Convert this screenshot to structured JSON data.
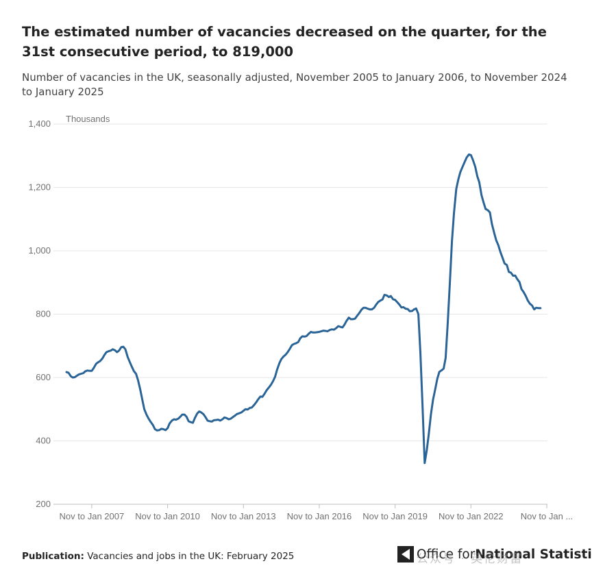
{
  "header": {
    "title": "The estimated number of vacancies decreased on the quarter, for the 31st consecutive period, to 819,000",
    "subtitle": "Number of vacancies in the UK, seasonally adjusted, November 2005 to January 2006, to November 2024 to January 2025"
  },
  "footer": {
    "publication_label": "Publication:",
    "publication_text": "Vacancies and jobs in the UK: February 2025"
  },
  "logo": {
    "text_part1": "Office for ",
    "text_part2": "National Statistics",
    "icon": "ons-logo-icon"
  },
  "watermark": "公众号 · 英伦财富",
  "colors": {
    "line": "#2a6496",
    "grid": "#e6e6e6",
    "axis_text": "#707070"
  },
  "chart_data": {
    "type": "line",
    "ylabel": "Thousands",
    "ylim": [
      200,
      1400
    ],
    "yticks": [
      200,
      400,
      600,
      800,
      1000,
      1200,
      1400
    ],
    "grid": true,
    "xlim": [
      2006.0,
      2025.0
    ],
    "xticks": [
      {
        "x": 2007,
        "label": "Nov to Jan 2007"
      },
      {
        "x": 2010,
        "label": "Nov to Jan 2010"
      },
      {
        "x": 2013,
        "label": "Nov to Jan 2013"
      },
      {
        "x": 2016,
        "label": "Nov to Jan 2016"
      },
      {
        "x": 2019,
        "label": "Nov to Jan 2019"
      },
      {
        "x": 2022,
        "label": "Nov to Jan 2022"
      },
      {
        "x": 2025,
        "label": "Nov to Jan ..."
      }
    ],
    "series": [
      {
        "points": [
          [
            2006.0,
            617
          ],
          [
            2006.08,
            615
          ],
          [
            2006.17,
            604
          ],
          [
            2006.25,
            600
          ],
          [
            2006.33,
            601
          ],
          [
            2006.42,
            606
          ],
          [
            2006.5,
            610
          ],
          [
            2006.58,
            612
          ],
          [
            2006.67,
            614
          ],
          [
            2006.75,
            620
          ],
          [
            2006.83,
            622
          ],
          [
            2006.92,
            621
          ],
          [
            2007.0,
            621
          ],
          [
            2007.08,
            630
          ],
          [
            2007.17,
            643
          ],
          [
            2007.25,
            648
          ],
          [
            2007.33,
            652
          ],
          [
            2007.42,
            660
          ],
          [
            2007.5,
            671
          ],
          [
            2007.58,
            680
          ],
          [
            2007.67,
            683
          ],
          [
            2007.75,
            685
          ],
          [
            2007.83,
            689
          ],
          [
            2007.92,
            686
          ],
          [
            2008.0,
            680
          ],
          [
            2008.08,
            685
          ],
          [
            2008.17,
            696
          ],
          [
            2008.25,
            697
          ],
          [
            2008.33,
            689
          ],
          [
            2008.42,
            665
          ],
          [
            2008.5,
            650
          ],
          [
            2008.58,
            635
          ],
          [
            2008.67,
            620
          ],
          [
            2008.75,
            612
          ],
          [
            2008.83,
            592
          ],
          [
            2008.92,
            562
          ],
          [
            2009.0,
            530
          ],
          [
            2009.08,
            500
          ],
          [
            2009.17,
            482
          ],
          [
            2009.25,
            470
          ],
          [
            2009.33,
            460
          ],
          [
            2009.42,
            450
          ],
          [
            2009.5,
            437
          ],
          [
            2009.58,
            433
          ],
          [
            2009.67,
            434
          ],
          [
            2009.75,
            438
          ],
          [
            2009.83,
            437
          ],
          [
            2009.92,
            434
          ],
          [
            2010.0,
            440
          ],
          [
            2010.08,
            455
          ],
          [
            2010.17,
            464
          ],
          [
            2010.25,
            468
          ],
          [
            2010.33,
            467
          ],
          [
            2010.42,
            470
          ],
          [
            2010.5,
            476
          ],
          [
            2010.58,
            483
          ],
          [
            2010.67,
            483
          ],
          [
            2010.75,
            476
          ],
          [
            2010.83,
            462
          ],
          [
            2010.92,
            459
          ],
          [
            2011.0,
            457
          ],
          [
            2011.08,
            472
          ],
          [
            2011.17,
            486
          ],
          [
            2011.25,
            493
          ],
          [
            2011.33,
            490
          ],
          [
            2011.42,
            484
          ],
          [
            2011.5,
            475
          ],
          [
            2011.58,
            464
          ],
          [
            2011.67,
            462
          ],
          [
            2011.75,
            461
          ],
          [
            2011.83,
            465
          ],
          [
            2011.92,
            466
          ],
          [
            2012.0,
            467
          ],
          [
            2012.08,
            464
          ],
          [
            2012.17,
            468
          ],
          [
            2012.25,
            474
          ],
          [
            2012.33,
            472
          ],
          [
            2012.42,
            468
          ],
          [
            2012.5,
            470
          ],
          [
            2012.58,
            475
          ],
          [
            2012.67,
            480
          ],
          [
            2012.75,
            485
          ],
          [
            2012.83,
            487
          ],
          [
            2012.92,
            490
          ],
          [
            2013.0,
            495
          ],
          [
            2013.08,
            500
          ],
          [
            2013.17,
            499
          ],
          [
            2013.25,
            504
          ],
          [
            2013.33,
            505
          ],
          [
            2013.42,
            513
          ],
          [
            2013.5,
            521
          ],
          [
            2013.58,
            531
          ],
          [
            2013.67,
            540
          ],
          [
            2013.75,
            539
          ],
          [
            2013.83,
            548
          ],
          [
            2013.92,
            560
          ],
          [
            2014.0,
            568
          ],
          [
            2014.08,
            576
          ],
          [
            2014.17,
            588
          ],
          [
            2014.25,
            602
          ],
          [
            2014.33,
            624
          ],
          [
            2014.42,
            645
          ],
          [
            2014.5,
            658
          ],
          [
            2014.58,
            666
          ],
          [
            2014.67,
            672
          ],
          [
            2014.75,
            680
          ],
          [
            2014.83,
            690
          ],
          [
            2014.92,
            702
          ],
          [
            2015.0,
            706
          ],
          [
            2015.08,
            708
          ],
          [
            2015.17,
            712
          ],
          [
            2015.25,
            724
          ],
          [
            2015.33,
            730
          ],
          [
            2015.42,
            729
          ],
          [
            2015.5,
            731
          ],
          [
            2015.58,
            738
          ],
          [
            2015.67,
            744
          ],
          [
            2015.75,
            742
          ],
          [
            2015.83,
            742
          ],
          [
            2015.92,
            743
          ],
          [
            2016.0,
            744
          ],
          [
            2016.08,
            746
          ],
          [
            2016.17,
            748
          ],
          [
            2016.25,
            747
          ],
          [
            2016.33,
            746
          ],
          [
            2016.42,
            750
          ],
          [
            2016.5,
            752
          ],
          [
            2016.58,
            751
          ],
          [
            2016.67,
            756
          ],
          [
            2016.75,
            762
          ],
          [
            2016.83,
            760
          ],
          [
            2016.92,
            758
          ],
          [
            2017.0,
            767
          ],
          [
            2017.08,
            779
          ],
          [
            2017.17,
            789
          ],
          [
            2017.25,
            784
          ],
          [
            2017.33,
            784
          ],
          [
            2017.42,
            786
          ],
          [
            2017.5,
            795
          ],
          [
            2017.58,
            803
          ],
          [
            2017.67,
            814
          ],
          [
            2017.75,
            820
          ],
          [
            2017.83,
            820
          ],
          [
            2017.92,
            817
          ],
          [
            2018.0,
            815
          ],
          [
            2018.08,
            815
          ],
          [
            2018.17,
            820
          ],
          [
            2018.25,
            830
          ],
          [
            2018.33,
            838
          ],
          [
            2018.42,
            843
          ],
          [
            2018.5,
            846
          ],
          [
            2018.58,
            861
          ],
          [
            2018.67,
            859
          ],
          [
            2018.75,
            854
          ],
          [
            2018.83,
            857
          ],
          [
            2018.92,
            847
          ],
          [
            2019.0,
            845
          ],
          [
            2019.08,
            838
          ],
          [
            2019.17,
            830
          ],
          [
            2019.25,
            821
          ],
          [
            2019.33,
            822
          ],
          [
            2019.42,
            817
          ],
          [
            2019.5,
            816
          ],
          [
            2019.58,
            809
          ],
          [
            2019.67,
            810
          ],
          [
            2019.75,
            815
          ],
          [
            2019.83,
            818
          ],
          [
            2019.92,
            800
          ],
          [
            2020.0,
            680
          ],
          [
            2020.08,
            520
          ],
          [
            2020.17,
            330
          ],
          [
            2020.25,
            370
          ],
          [
            2020.33,
            420
          ],
          [
            2020.42,
            485
          ],
          [
            2020.5,
            530
          ],
          [
            2020.58,
            560
          ],
          [
            2020.67,
            596
          ],
          [
            2020.75,
            618
          ],
          [
            2020.83,
            622
          ],
          [
            2020.92,
            628
          ],
          [
            2021.0,
            662
          ],
          [
            2021.08,
            770
          ],
          [
            2021.17,
            905
          ],
          [
            2021.25,
            1030
          ],
          [
            2021.33,
            1120
          ],
          [
            2021.42,
            1195
          ],
          [
            2021.5,
            1225
          ],
          [
            2021.58,
            1248
          ],
          [
            2021.67,
            1265
          ],
          [
            2021.75,
            1280
          ],
          [
            2021.83,
            1294
          ],
          [
            2021.92,
            1304
          ],
          [
            2022.0,
            1302
          ],
          [
            2022.08,
            1286
          ],
          [
            2022.17,
            1265
          ],
          [
            2022.25,
            1236
          ],
          [
            2022.33,
            1216
          ],
          [
            2022.42,
            1175
          ],
          [
            2022.5,
            1152
          ],
          [
            2022.58,
            1132
          ],
          [
            2022.67,
            1128
          ],
          [
            2022.75,
            1121
          ],
          [
            2022.83,
            1085
          ],
          [
            2022.92,
            1056
          ],
          [
            2023.0,
            1033
          ],
          [
            2023.08,
            1018
          ],
          [
            2023.17,
            995
          ],
          [
            2023.25,
            978
          ],
          [
            2023.33,
            960
          ],
          [
            2023.42,
            955
          ],
          [
            2023.5,
            933
          ],
          [
            2023.58,
            931
          ],
          [
            2023.67,
            921
          ],
          [
            2023.75,
            922
          ],
          [
            2023.83,
            911
          ],
          [
            2023.92,
            901
          ],
          [
            2024.0,
            879
          ],
          [
            2024.08,
            870
          ],
          [
            2024.17,
            857
          ],
          [
            2024.25,
            843
          ],
          [
            2024.33,
            833
          ],
          [
            2024.42,
            827
          ],
          [
            2024.5,
            815
          ],
          [
            2024.58,
            820
          ],
          [
            2024.67,
            819
          ],
          [
            2024.75,
            819
          ]
        ]
      }
    ]
  }
}
